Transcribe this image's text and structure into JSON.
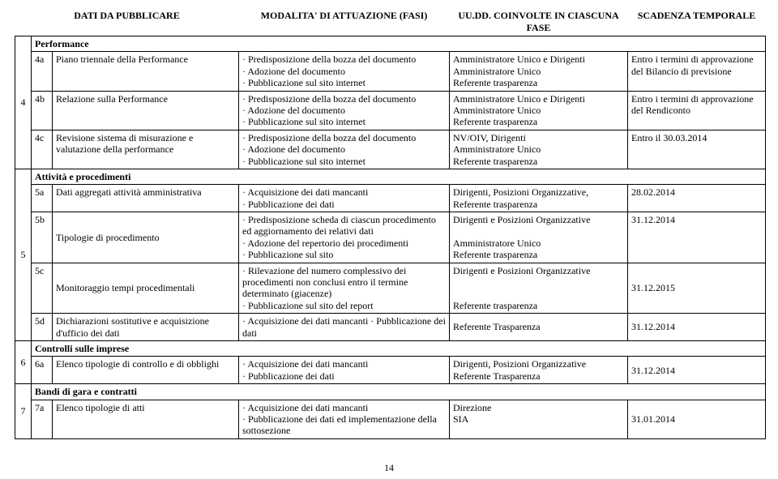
{
  "page_number": "14",
  "headers": {
    "col_data": "DATI DA PUBBLICARE",
    "col_modalita": "MODALITA' DI ATTUAZIONE (FASI)",
    "col_uudd": "UU.DD. COINVOLTE IN CIASCUNA FASE",
    "col_scadenza": "SCADENZA TEMPORALE"
  },
  "group4": {
    "num": "4",
    "section": "Performance",
    "rows": [
      {
        "id": "4a",
        "name": "Piano triennale della Performance",
        "modalita": "· Predisposizione della bozza del documento\n· Adozione del documento\n· Pubblicazione sul sito internet",
        "uudd": "Amministratore Unico e Dirigenti\nAmministratore Unico\nReferente trasparenza",
        "scadenza": "Entro i termini di approvazione del Bilancio di previsione"
      },
      {
        "id": "4b",
        "name": "Relazione sulla Performance",
        "modalita": "· Predisposizione della bozza del documento\n· Adozione del documento\n· Pubblicazione sul sito internet",
        "uudd": "Amministratore Unico e Dirigenti\nAmministratore Unico\nReferente trasparenza",
        "scadenza": "Entro i termini di approvazione del Rendiconto"
      },
      {
        "id": "4c",
        "name": "Revisione sistema di misurazione e valutazione della performance",
        "modalita": "· Predisposizione della bozza del documento\n· Adozione del documento\n· Pubblicazione sul sito internet",
        "uudd": "NV/OIV, Dirigenti\nAmministratore Unico\nReferente trasparenza",
        "scadenza": "Entro il 30.03.2014"
      }
    ]
  },
  "group5": {
    "num": "5",
    "section": "Attività e procedimenti",
    "rows": [
      {
        "id": "5a",
        "name": "Dati aggregati attività amministrativa",
        "modalita": "· Acquisizione dei dati mancanti\n· Pubblicazione dei dati",
        "uudd": "Dirigenti, Posizioni Organizzative,\nReferente trasparenza",
        "scadenza": "28.02.2014"
      },
      {
        "id": "5b",
        "name": "Tipologie di procedimento",
        "modalita": "· Predisposizione scheda di ciascun procedimento ed aggiornamento dei relativi dati\n· Adozione del repertorio dei procedimenti\n· Pubblicazione sul sito",
        "uudd": "Dirigenti e Posizioni Organizzative\n\nAmministratore Unico\nReferente trasparenza",
        "scadenza": "31.12.2014"
      },
      {
        "id": "5c",
        "name": "Monitoraggio tempi procedimentali",
        "modalita": "· Rilevazione del numero complessivo dei procedimenti non conclusi entro il termine determinato (giacenze)\n· Pubblicazione sul sito del report",
        "uudd": "Dirigenti e Posizioni Organizzative\n\n\nReferente trasparenza",
        "scadenza": "31.12.2015"
      },
      {
        "id": "5d",
        "name": "Dichiarazioni sostitutive e acquisizione d'ufficio dei dati",
        "modalita": "· Acquisizione dei dati mancanti · Pubblicazione dei dati",
        "uudd": "Referente Trasparenza",
        "scadenza": "31.12.2014"
      }
    ]
  },
  "group6": {
    "num": "6",
    "section": "Controlli sulle imprese",
    "rows": [
      {
        "id": "6a",
        "name": "Elenco tipologie di controllo e di obblighi",
        "modalita": "· Acquisizione dei dati mancanti\n· Pubblicazione dei dati",
        "uudd": "Dirigenti, Posizioni Organizzative\nReferente Trasparenza",
        "scadenza": "31.12.2014"
      }
    ]
  },
  "group7": {
    "num": "7",
    "section": "Bandi di gara e contratti",
    "rows": [
      {
        "id": "7a",
        "name": "Elenco tipologie di atti",
        "modalita": "· Acquisizione dei dati mancanti\n· Pubblicazione dei dati ed implementazione della sottosezione",
        "uudd": "Direzione\n SIA",
        "scadenza": "31.01.2014"
      }
    ]
  }
}
